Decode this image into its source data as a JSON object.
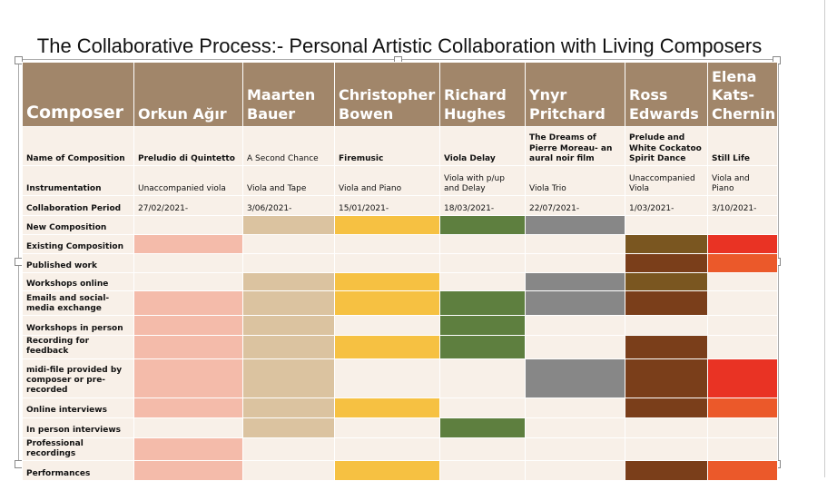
{
  "title": "The Collaborative Process:- Personal Artistic Collaboration with Living Composers",
  "header": {
    "label": "Composer",
    "composers": [
      "Orkun Ağır",
      "Maarten Bauer",
      "Christopher Bowen",
      "Richard Hughes",
      "Ynyr Pritchard",
      "Ross Edwards",
      "Elena Kats-Chernin"
    ]
  },
  "info_rows": [
    {
      "label": "Name of Composition",
      "values": [
        "Preludio di Quintetto",
        "A Second Chance",
        "Firemusic",
        "Viola Delay",
        "The Dreams of Pierre Moreau- an aural noir film",
        "Prelude and White Cockatoo Spirit Dance",
        "Still Life"
      ]
    },
    {
      "label": "Instrumentation",
      "values": [
        "Unaccompanied viola",
        "Viola and Tape",
        "Viola and Piano",
        "Viola with p/up and Delay",
        "Viola Trio",
        "Unaccompanied Viola",
        "Viola and Piano"
      ]
    },
    {
      "label": "Collaboration Period",
      "values": [
        "27/02/2021-",
        "3/06/2021-",
        "15/01/2021-",
        "18/03/2021-",
        "22/07/2021-",
        "1/03/2021-",
        "3/10/2021-"
      ]
    }
  ],
  "colors": {
    "pink": "#F4BBAA",
    "tan": "#DBC3A0",
    "yellow": "#F6C142",
    "green": "#5E7F3F",
    "grey": "#878787",
    "brown": "#7A3E1A",
    "olive": "#7A5620",
    "red": "#E93324",
    "orange": "#EB592A",
    "empty": "#F8F0E8",
    "header": "#A1866A"
  },
  "activity_rows": [
    {
      "label": "New Composition",
      "cells": [
        "",
        "tan",
        "yellow",
        "green",
        "grey",
        "",
        ""
      ]
    },
    {
      "label": "Existing Composition",
      "cells": [
        "pink",
        "",
        "",
        "",
        "",
        "olive",
        "red"
      ]
    },
    {
      "label": "Published work",
      "cells": [
        "",
        "",
        "",
        "",
        "",
        "brown",
        "orange"
      ]
    },
    {
      "label": "Workshops online",
      "cells": [
        "",
        "tan",
        "yellow",
        "",
        "grey",
        "olive",
        ""
      ]
    },
    {
      "label": "Emails  and social-media exchange",
      "cells": [
        "pink",
        "tan",
        "yellow",
        "green",
        "grey",
        "brown",
        ""
      ]
    },
    {
      "label": "Workshops in person",
      "cells": [
        "pink",
        "tan",
        "",
        "green",
        "",
        "",
        ""
      ]
    },
    {
      "label": "Recording for feedback",
      "cells": [
        "pink",
        "tan",
        "yellow",
        "green",
        "",
        "brown",
        ""
      ]
    },
    {
      "label": "midi-file provided by composer or pre-recorded",
      "cells": [
        "pink",
        "tan",
        "",
        "",
        "grey",
        "brown",
        "red"
      ]
    },
    {
      "label": "Online interviews",
      "cells": [
        "pink",
        "tan",
        "yellow",
        "",
        "",
        "brown",
        "orange"
      ]
    },
    {
      "label": "In person interviews",
      "cells": [
        "",
        "tan",
        "",
        "green",
        "",
        "",
        ""
      ]
    },
    {
      "label": "Professional recordings",
      "cells": [
        "pink",
        "",
        "",
        "",
        "",
        "",
        ""
      ]
    },
    {
      "label": "Performances",
      "cells": [
        "pink",
        "",
        "yellow",
        "",
        "",
        "brown",
        "orange"
      ]
    }
  ]
}
